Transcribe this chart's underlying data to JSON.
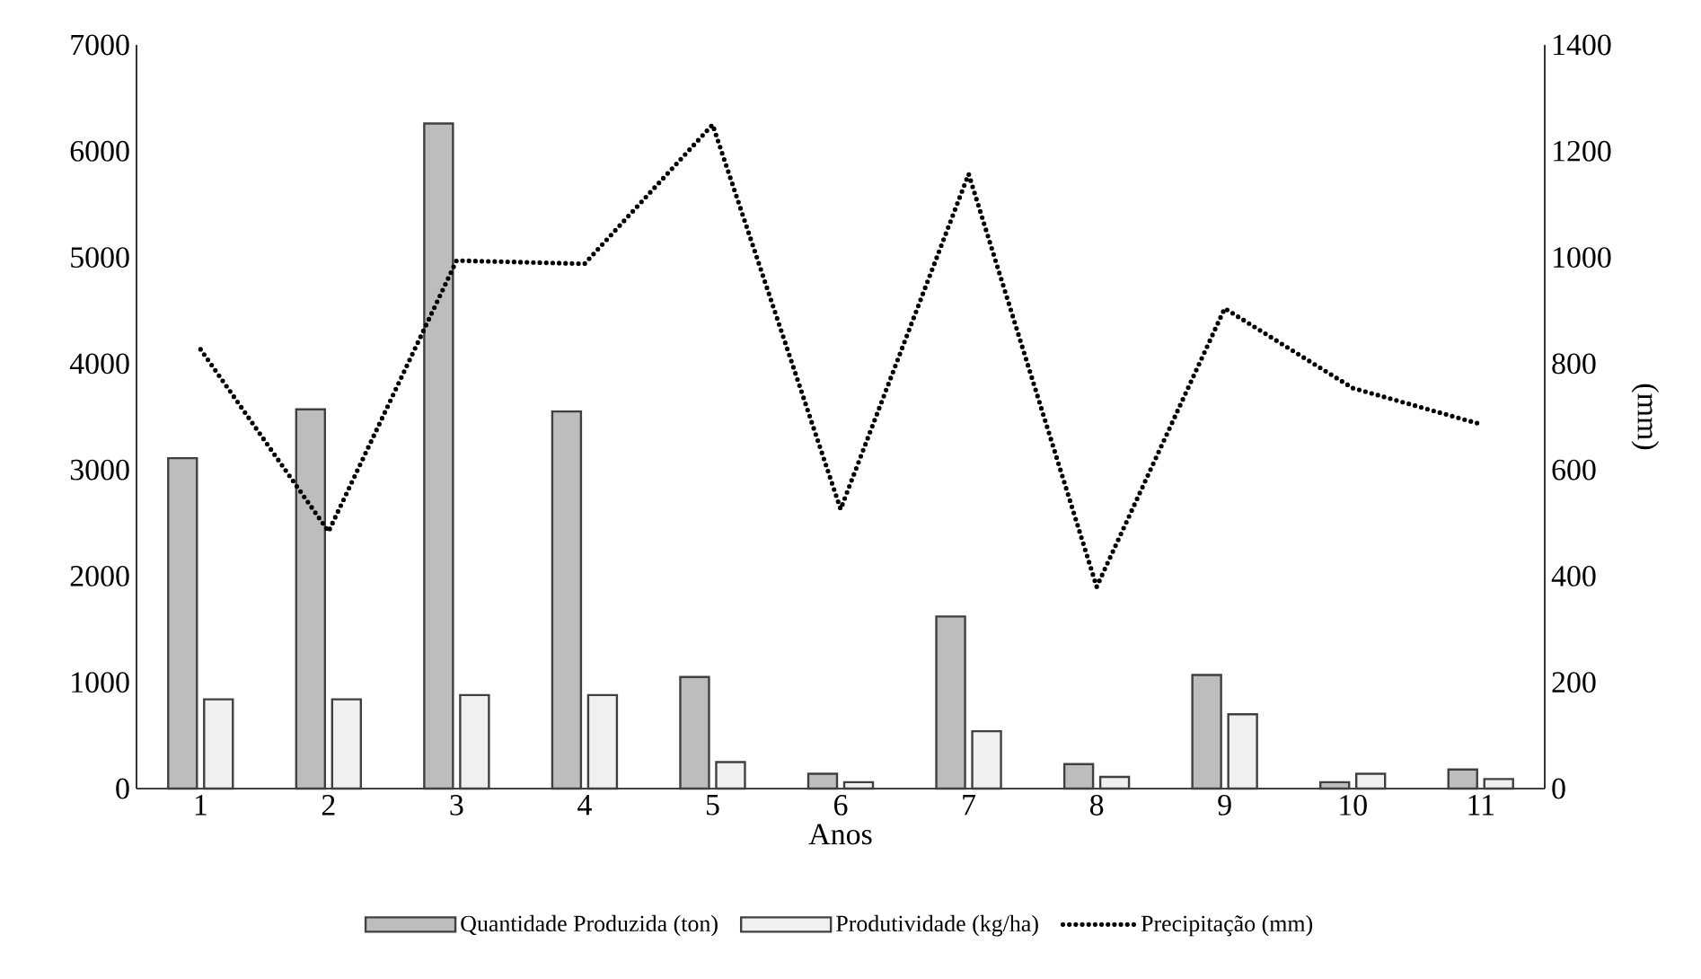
{
  "chart_data": {
    "type": "bar",
    "xlabel": "Anos",
    "y2label": "(mm)",
    "categories": [
      "1",
      "2",
      "3",
      "4",
      "5",
      "6",
      "7",
      "8",
      "9",
      "10",
      "11"
    ],
    "series": [
      {
        "name": "Quantidade Produzida (ton)",
        "color": "#bdbdbd",
        "values": [
          3110,
          3570,
          6260,
          3550,
          1050,
          140,
          1620,
          230,
          1070,
          60,
          180
        ]
      },
      {
        "name": "Produtividade (kg/ha)",
        "color": "#f0f0f0",
        "values": [
          840,
          840,
          880,
          880,
          250,
          60,
          540,
          110,
          700,
          140,
          90
        ]
      },
      {
        "name": "Precipitação (mm)",
        "type": "line",
        "axis": "y2",
        "color": "#000000",
        "line_style": "dotted",
        "marker": "none",
        "values": [
          827,
          484,
          994,
          988,
          1250,
          526,
          1157,
          380,
          904,
          754,
          686
        ]
      }
    ],
    "ylim": [
      0,
      7000
    ],
    "yticks": [
      0,
      1000,
      2000,
      3000,
      4000,
      5000,
      6000,
      7000
    ],
    "y2lim": [
      0,
      1400
    ],
    "y2ticks": [
      0,
      200,
      400,
      600,
      800,
      1000,
      1200,
      1400
    ],
    "legend": "bottom",
    "grid": false
  }
}
